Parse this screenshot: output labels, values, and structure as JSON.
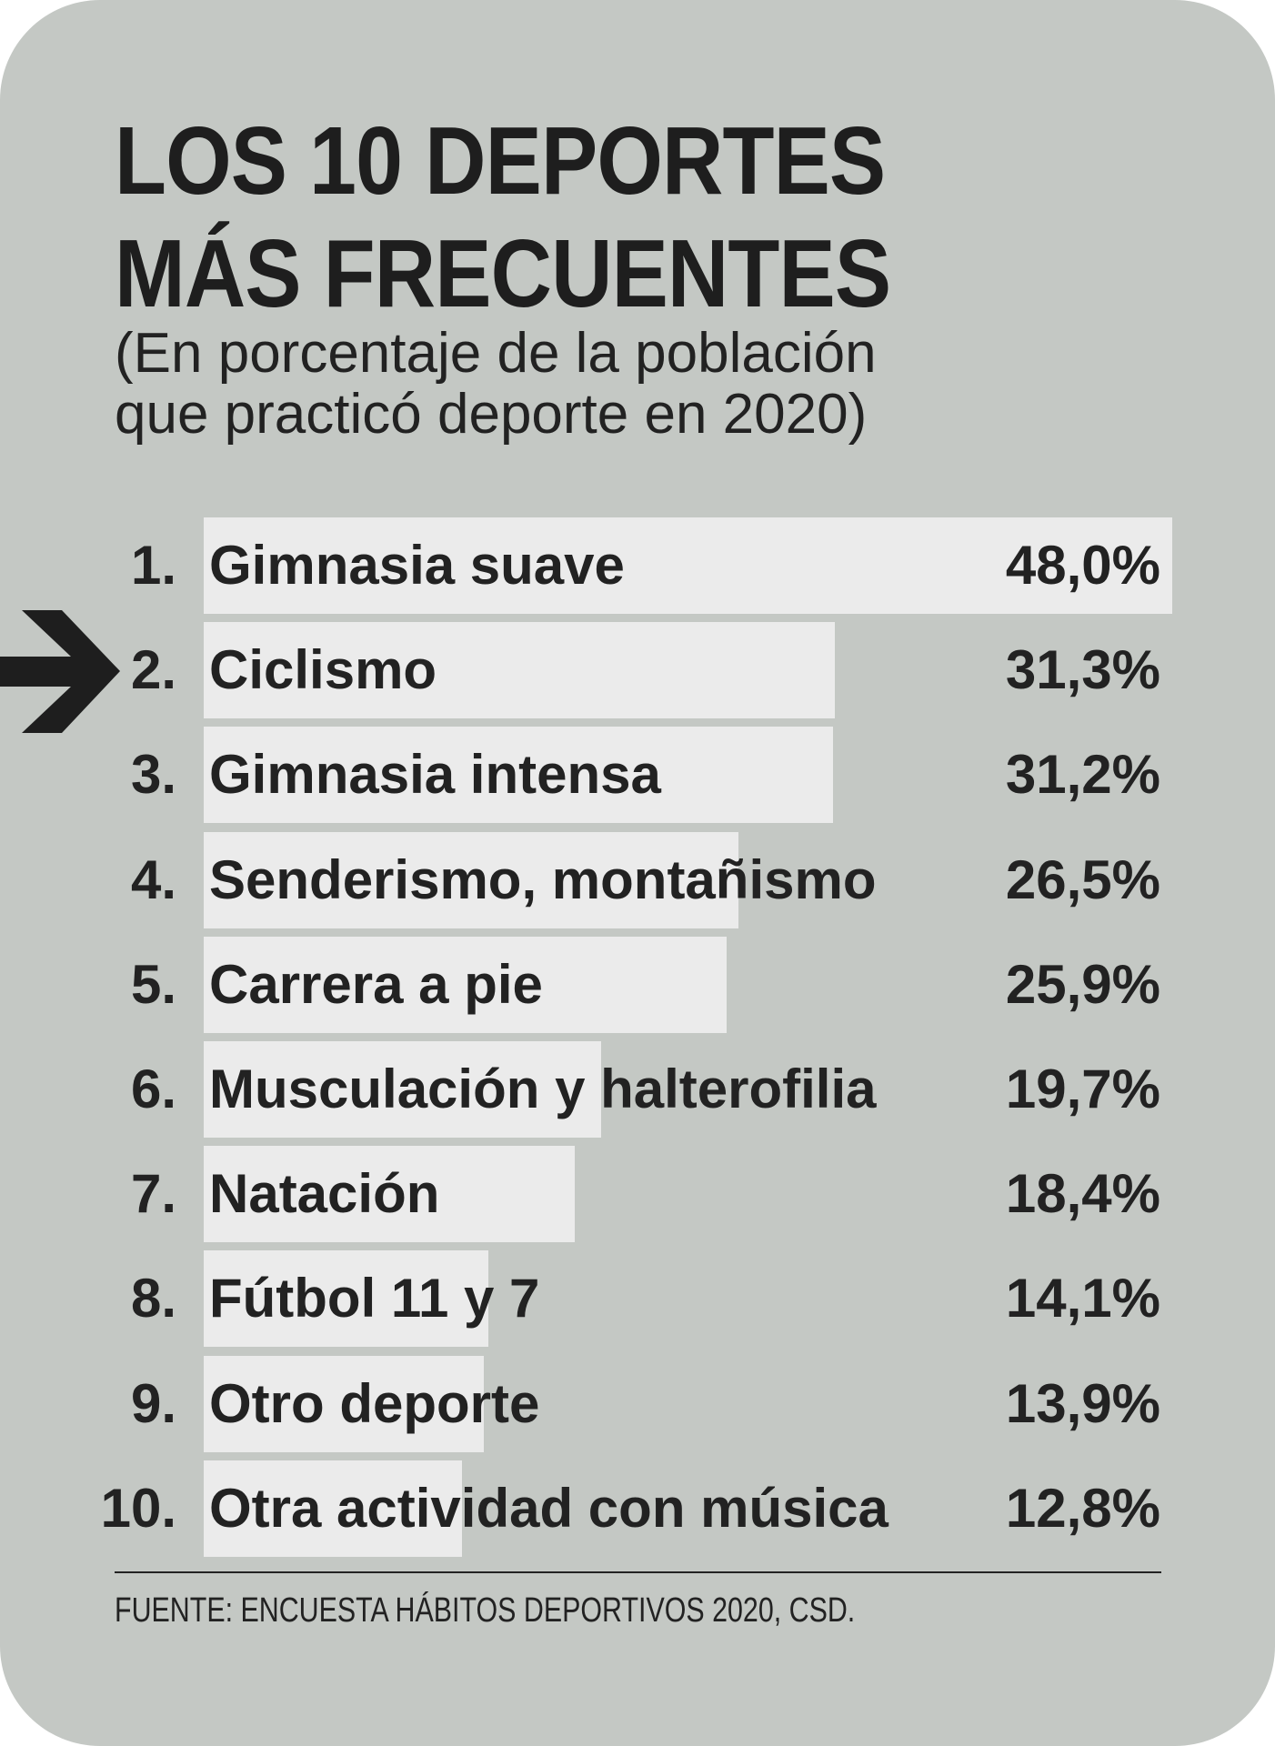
{
  "title_lines": [
    "LOS 10 DEPORTES",
    "MÁS FRECUENTES"
  ],
  "subtitle_lines": [
    "(En porcentaje de la población",
    "que practicó deporte en 2020)"
  ],
  "source": "FUENTE: ENCUESTA HÁBITOS DEPORTIVOS 2020, CSD.",
  "highlight": {
    "rank": 2,
    "icon": "arrow-right-icon"
  },
  "colors": {
    "background": "#c4c8c4",
    "bar": "#ebebeb",
    "text": "#222222"
  },
  "chart_data": {
    "type": "bar",
    "orientation": "horizontal",
    "title": "LOS 10 DEPORTES MÁS FRECUENTES",
    "subtitle": "(En porcentaje de la población que practicó deporte en 2020)",
    "ranks": [
      "1.",
      "2.",
      "3.",
      "4.",
      "5.",
      "6.",
      "7.",
      "8.",
      "9.",
      "10."
    ],
    "categories": [
      "Gimnasia suave",
      "Ciclismo",
      "Gimnasia intensa",
      "Senderismo, montañismo",
      "Carrera a pie",
      "Musculación y halterofilia",
      "Natación",
      "Fútbol 11 y 7",
      "Otro deporte",
      "Otra actividad con música"
    ],
    "values": [
      48.0,
      31.3,
      31.2,
      26.5,
      25.9,
      19.7,
      18.4,
      14.1,
      13.9,
      12.8
    ],
    "value_labels": [
      "48,0%",
      "31,3%",
      "31,2%",
      "26,5%",
      "25,9%",
      "19,7%",
      "18,4%",
      "14,1%",
      "13,9%",
      "12,8%"
    ],
    "xlim": [
      0,
      48
    ],
    "grid": false
  }
}
